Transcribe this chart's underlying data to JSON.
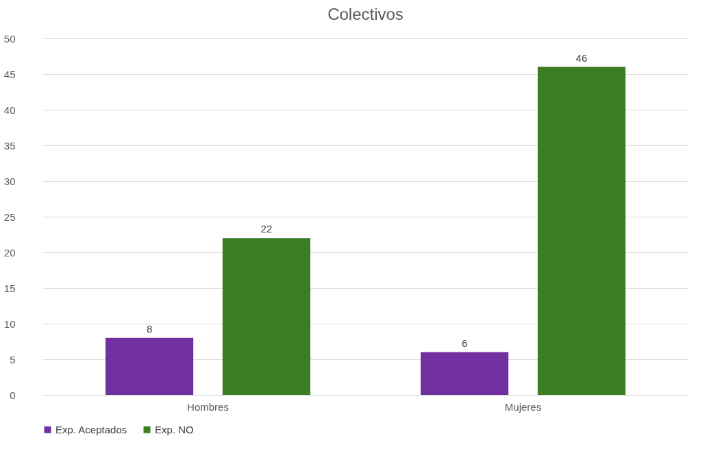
{
  "chart_data": {
    "type": "bar",
    "title": "Colectivos",
    "categories": [
      "Hombres",
      "Mujeres"
    ],
    "series": [
      {
        "name": "Exp. Aceptados",
        "color": "#7030a0",
        "values": [
          8,
          6
        ]
      },
      {
        "name": "Exp. NO",
        "color": "#3b7d23",
        "values": [
          22,
          46
        ]
      }
    ],
    "ylim": [
      0,
      50
    ],
    "yticks": [
      0,
      5,
      10,
      15,
      20,
      25,
      30,
      35,
      40,
      45,
      50
    ],
    "grid": "y",
    "legend": "bottom",
    "data_labels": true
  }
}
